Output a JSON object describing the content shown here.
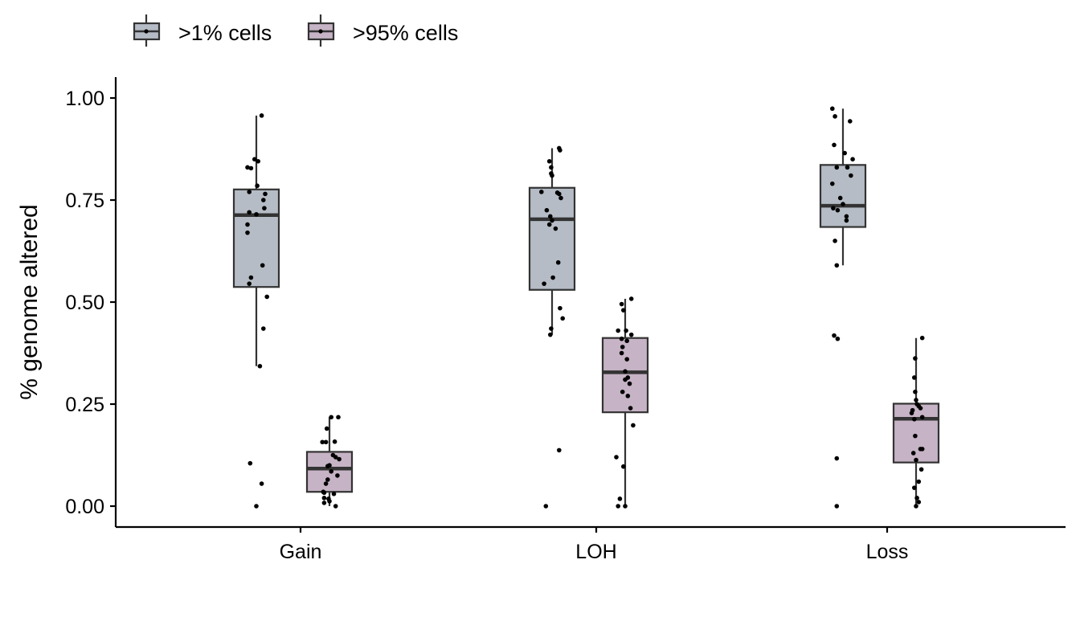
{
  "chart_data": {
    "type": "boxplot",
    "title": "",
    "xlabel": "",
    "ylabel": "% genome altered",
    "ylim": [
      -0.05,
      1.05
    ],
    "yticks": [
      0,
      0.25,
      0.5,
      0.75,
      1.0
    ],
    "ytick_labels": [
      "0.00",
      "0.25",
      "0.50",
      "0.75",
      "1.00"
    ],
    "categories": [
      "Gain",
      "LOH",
      "Loss"
    ],
    "legend_position": "top-left",
    "grid": false,
    "series": [
      {
        "name": ">1% cells",
        "color": "#b5bcc5",
        "boxes": [
          {
            "q1": 0.537,
            "median": 0.713,
            "q3": 0.776,
            "whisker_low": 0.343,
            "whisker_high": 0.957
          },
          {
            "q1": 0.53,
            "median": 0.703,
            "q3": 0.78,
            "whisker_low": 0.42,
            "whisker_high": 0.877
          },
          {
            "q1": 0.684,
            "median": 0.736,
            "q3": 0.836,
            "whisker_low": 0.59,
            "whisker_high": 0.974
          }
        ],
        "points": [
          [
            0.957,
            0.85,
            0.845,
            0.83,
            0.828,
            0.785,
            0.77,
            0.765,
            0.75,
            0.73,
            0.72,
            0.715,
            0.69,
            0.67,
            0.59,
            0.56,
            0.545,
            0.513,
            0.435,
            0.343,
            0.105,
            0.055,
            0.0
          ],
          [
            0.877,
            0.872,
            0.845,
            0.83,
            0.815,
            0.81,
            0.77,
            0.768,
            0.765,
            0.755,
            0.725,
            0.71,
            0.7,
            0.69,
            0.68,
            0.597,
            0.56,
            0.545,
            0.485,
            0.46,
            0.435,
            0.42,
            0.137,
            0.0
          ],
          [
            0.974,
            0.955,
            0.943,
            0.885,
            0.865,
            0.85,
            0.83,
            0.83,
            0.81,
            0.79,
            0.755,
            0.74,
            0.73,
            0.725,
            0.71,
            0.7,
            0.65,
            0.59,
            0.418,
            0.41,
            0.117,
            0.0
          ]
        ],
        "jitter": [
          [
            0.3,
            -0.1,
            0.1,
            -0.5,
            -0.3,
            0.05,
            -0.4,
            0.5,
            0.4,
            0.45,
            -0.4,
            0.0,
            -0.5,
            -0.5,
            0.35,
            -0.3,
            -0.4,
            0.6,
            0.4,
            0.2,
            -0.35,
            0.3,
            0.0
          ],
          [
            0.4,
            0.45,
            -0.15,
            -0.05,
            -0.05,
            0.0,
            -0.6,
            0.3,
            0.4,
            0.5,
            -0.3,
            -0.1,
            0.0,
            -0.15,
            0.2,
            0.35,
            0.05,
            -0.45,
            0.45,
            0.6,
            -0.05,
            -0.1,
            0.4,
            -0.35
          ],
          [
            -0.6,
            -0.45,
            0.4,
            -0.5,
            0.1,
            0.55,
            -0.35,
            0.25,
            0.45,
            -0.6,
            -0.15,
            0.0,
            -0.55,
            -0.3,
            0.2,
            0.2,
            -0.45,
            -0.35,
            -0.5,
            -0.3,
            -0.35,
            -0.35
          ]
        ]
      },
      {
        "name": ">95% cells",
        "color": "#c6b3c5",
        "boxes": [
          {
            "q1": 0.035,
            "median": 0.092,
            "q3": 0.133,
            "whisker_low": 0.0,
            "whisker_high": 0.218
          },
          {
            "q1": 0.23,
            "median": 0.328,
            "q3": 0.412,
            "whisker_low": 0.0,
            "whisker_high": 0.508
          },
          {
            "q1": 0.107,
            "median": 0.214,
            "q3": 0.251,
            "whisker_low": 0.0,
            "whisker_high": 0.412
          }
        ],
        "points": [
          [
            0.218,
            0.218,
            0.19,
            0.158,
            0.157,
            0.157,
            0.125,
            0.12,
            0.115,
            0.1,
            0.098,
            0.085,
            0.075,
            0.065,
            0.055,
            0.035,
            0.033,
            0.03,
            0.02,
            0.018,
            0.012,
            0.008,
            0.0
          ],
          [
            0.508,
            0.495,
            0.48,
            0.43,
            0.43,
            0.42,
            0.41,
            0.405,
            0.39,
            0.375,
            0.36,
            0.33,
            0.315,
            0.31,
            0.3,
            0.28,
            0.27,
            0.24,
            0.198,
            0.12,
            0.097,
            0.018,
            0.0,
            0.0
          ],
          [
            0.412,
            0.362,
            0.315,
            0.28,
            0.26,
            0.25,
            0.245,
            0.24,
            0.235,
            0.228,
            0.218,
            0.213,
            0.172,
            0.14,
            0.14,
            0.13,
            0.113,
            0.09,
            0.06,
            0.045,
            0.02,
            0.01,
            0.0
          ]
        ],
        "jitter": [
          [
            0.1,
            0.5,
            -0.15,
            0.3,
            -0.4,
            -0.2,
            0.2,
            0.35,
            0.55,
            0.0,
            -0.1,
            0.1,
            0.45,
            -0.1,
            -0.2,
            -0.35,
            -0.3,
            0.25,
            -0.3,
            -0.05,
            0.0,
            -0.3,
            0.35
          ],
          [
            0.35,
            -0.2,
            -0.1,
            -0.4,
            0.05,
            0.35,
            -0.2,
            0.1,
            -0.15,
            -0.2,
            0.1,
            0.0,
            0.15,
            0.0,
            0.25,
            -0.15,
            0.15,
            0.3,
            0.45,
            -0.5,
            -0.1,
            -0.3,
            -0.4,
            0.0
          ],
          [
            0.35,
            -0.05,
            -0.1,
            -0.05,
            0.0,
            0.05,
            0.15,
            0.25,
            -0.2,
            -0.25,
            0.35,
            -0.1,
            -0.05,
            0.25,
            0.35,
            -0.15,
            0.0,
            0.3,
            0.15,
            -0.1,
            0.05,
            0.15,
            0.0
          ]
        ]
      }
    ]
  }
}
